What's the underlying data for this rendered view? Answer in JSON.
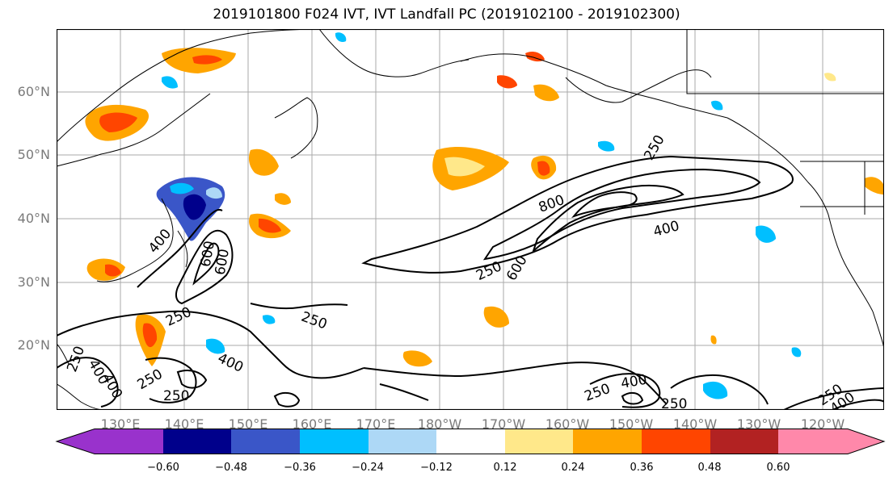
{
  "title": "2019101800 F024 IVT, IVT Landfall PC (2019102100 - 2019102300)",
  "lat_labels": [
    "60°N",
    "50°N",
    "40°N",
    "30°N",
    "20°N"
  ],
  "lon_labels": [
    "130°E",
    "140°E",
    "150°E",
    "160°E",
    "170°E",
    "180°W",
    "170°W",
    "160°W",
    "150°W",
    "140°W",
    "130°W",
    "120°W"
  ],
  "contour_labels": [
    "250",
    "400",
    "600",
    "800",
    "250",
    "400",
    "600",
    "250",
    "400",
    "250",
    "250",
    "250",
    "400",
    "250",
    "250",
    "400",
    "600",
    "400",
    "250",
    "250",
    "400"
  ],
  "colorbar": {
    "colors": [
      "#9932CC",
      "#00008B",
      "#3A56C8",
      "#00BFFF",
      "#ADD8F6",
      "#FFFFFF",
      "#FFE88A",
      "#FFA500",
      "#FF4500",
      "#B22222",
      "#FF88AA"
    ],
    "ticks": [
      "−0.60",
      "−0.48",
      "−0.36",
      "−0.24",
      "−0.12",
      "0.12",
      "0.24",
      "0.36",
      "0.48",
      "0.60"
    ]
  }
}
